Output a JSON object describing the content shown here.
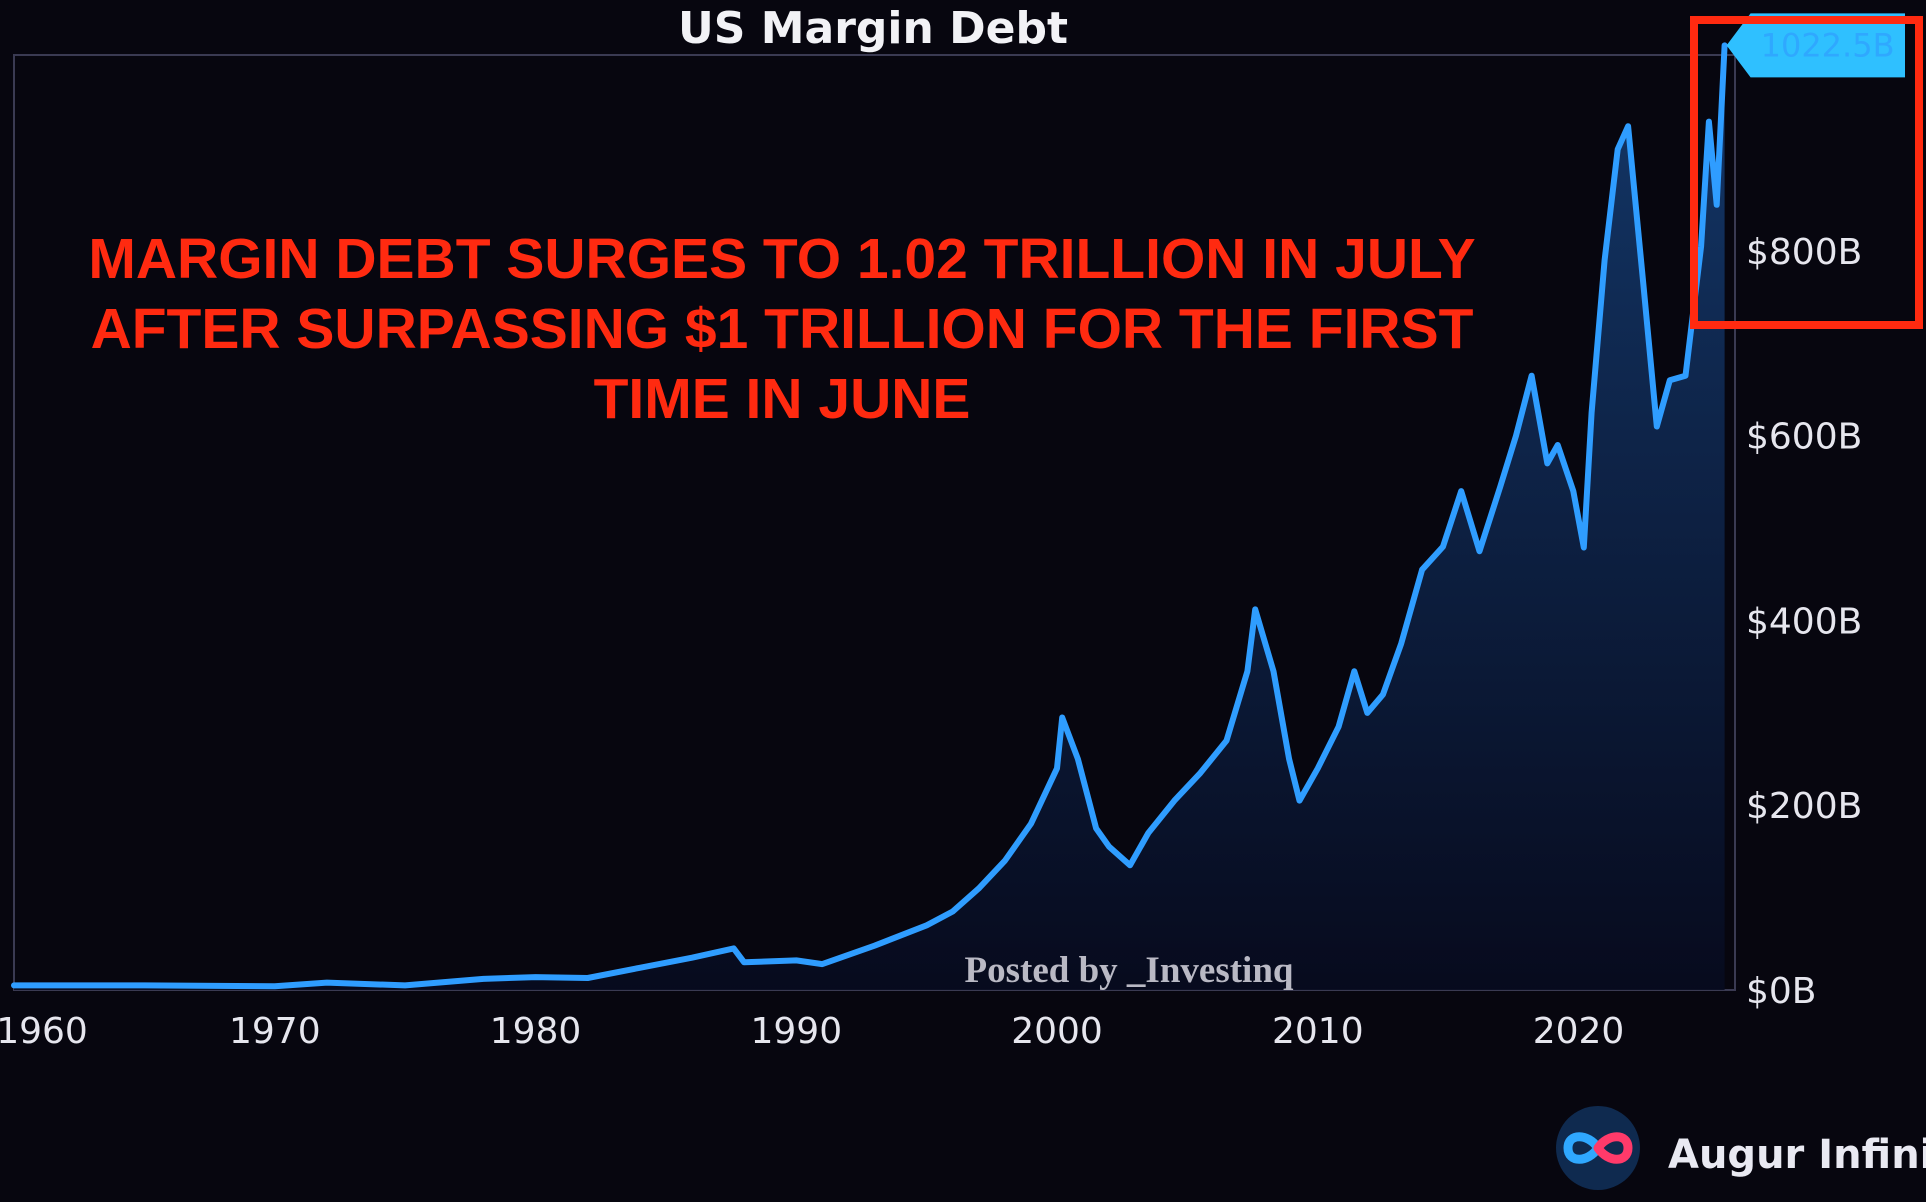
{
  "colors": {
    "background": "#07060f",
    "line": "#2f9dff",
    "area_top": "#143a6e",
    "area_bottom": "#070b1f",
    "headline": "#ff2a10",
    "highlight_box": "#ff2a10",
    "callout": "#25b8ff"
  },
  "annotation": {
    "headline_lines": [
      "MARGIN DEBT SURGES TO 1.02 TRILLION IN JULY",
      "AFTER SURPASSING $1 TRILLION FOR THE FIRST",
      "TIME IN JUNE"
    ],
    "watermark": "Posted by _Investinq",
    "latest_value_label": "1022.5B"
  },
  "branding": {
    "name": "Augur Infinity",
    "logo_icon": "infinity-icon"
  },
  "chart_data": {
    "type": "area",
    "title": "US Margin Debt",
    "xlabel": "",
    "ylabel": "",
    "xlim": [
      1960,
      2026
    ],
    "ylim": [
      0,
      1050
    ],
    "y_unit": "B USD",
    "x_ticks": [
      "1960",
      "1970",
      "1980",
      "1990",
      "2000",
      "2010",
      "2020"
    ],
    "y_ticks": [
      "$0B",
      "$200B",
      "$400B",
      "$600B",
      "$800B"
    ],
    "grid": false,
    "legend": "none",
    "series": [
      {
        "x": [
          1960,
          1965,
          1970,
          1972,
          1975,
          1978,
          1980,
          1982,
          1984,
          1986,
          1987.6,
          1988,
          1990,
          1991,
          1993,
          1995,
          1996,
          1997,
          1998,
          1999,
          2000,
          2000.2,
          2000.8,
          2001.5,
          2002,
          2002.8,
          2003.5,
          2004.5,
          2005.5,
          2006.5,
          2007.3,
          2007.6,
          2008.3,
          2008.9,
          2009.3,
          2010,
          2010.8,
          2011.4,
          2011.9,
          2012.5,
          2013.2,
          2014,
          2014.8,
          2015.5,
          2016.2,
          2017,
          2017.6,
          2018.2,
          2018.8,
          2019.2,
          2019.8,
          2020.2,
          2020.5,
          2021,
          2021.5,
          2021.9,
          2022.5,
          2023,
          2023.5,
          2024.1,
          2024.7,
          2025,
          2025.3,
          2025.6
        ],
        "y": [
          5,
          5,
          4,
          8,
          5,
          12,
          14,
          13,
          24,
          35,
          45,
          30,
          32,
          28,
          48,
          70,
          85,
          110,
          140,
          180,
          240,
          295,
          250,
          175,
          155,
          135,
          170,
          205,
          235,
          270,
          345,
          412,
          345,
          250,
          205,
          240,
          285,
          345,
          300,
          320,
          375,
          455,
          480,
          540,
          475,
          545,
          600,
          665,
          570,
          590,
          540,
          479,
          625,
          790,
          910,
          935,
          760,
          610,
          660,
          665,
          805,
          940,
          850,
          1022.5
        ]
      }
    ],
    "annotations": [
      {
        "x": 2025.6,
        "y": 1022.5,
        "text": "1022.5B"
      }
    ]
  }
}
